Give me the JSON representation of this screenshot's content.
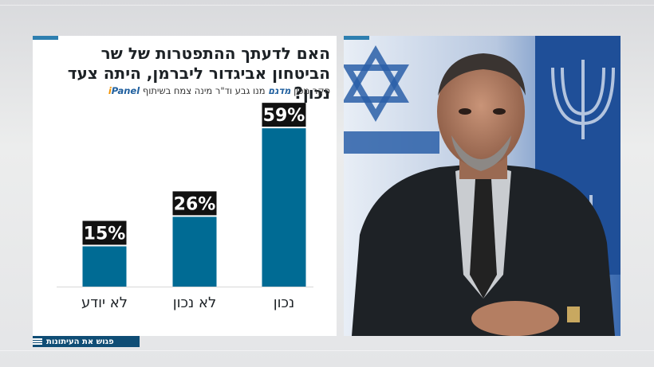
{
  "question": "האם לדעתך ההתפטרות של שר הביטחון אביגדור ליברמן, היתה צעד נכון?",
  "credit": {
    "text": "סקר מכון",
    "logo_magam": "מדגם",
    "text_after": "מנו גבע וד\"ר מינה צמח בשיתוף",
    "logo_ipanel": "Panel",
    "logo_ipanel_prefix": "i"
  },
  "bottom_bar": {
    "label": "פגוש את העיתונות"
  },
  "colors": {
    "bar": "#006b94",
    "label_bg": "#111111",
    "label_text": "#ffffff",
    "accent": "#2e7fb0"
  },
  "chart_data": {
    "type": "bar",
    "categories": [
      "נכון",
      "לא נכון",
      "לא יודע"
    ],
    "values": [
      59,
      26,
      15
    ],
    "value_labels": [
      "59%",
      "26%",
      "15%"
    ],
    "ylim": [
      0,
      100
    ],
    "grid": false
  }
}
